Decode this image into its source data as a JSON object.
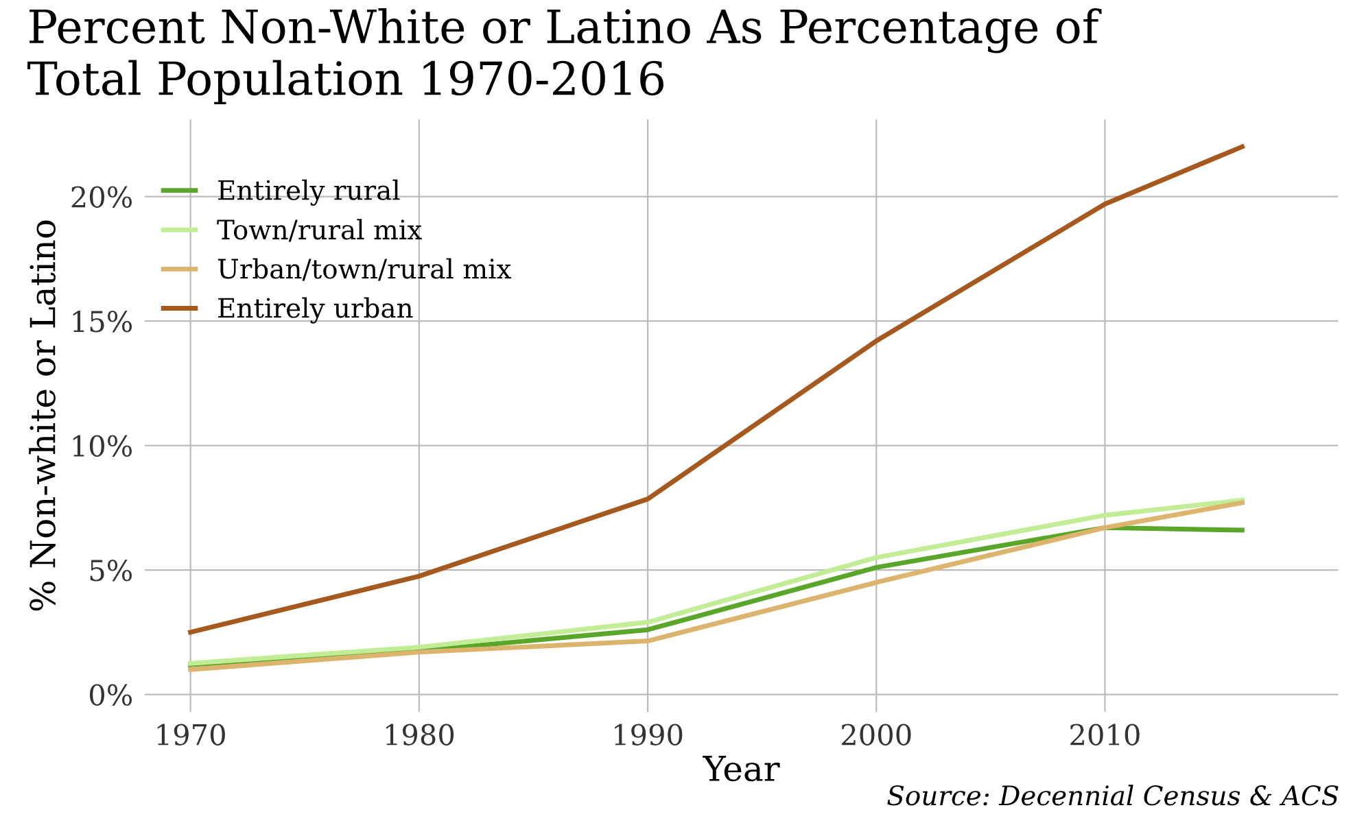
{
  "chart_data": {
    "type": "line",
    "title": "Percent Non-White or Latino As Percentage of\nTotal Population 1970-2016",
    "xlabel": "Year",
    "ylabel": "% Non-white or Latino",
    "x": [
      1970,
      1980,
      1990,
      2000,
      2010,
      2016
    ],
    "series": [
      {
        "name": "Entirely rural",
        "color": "#5aa62a",
        "values": [
          1.2,
          1.75,
          2.6,
          5.1,
          6.7,
          6.6
        ]
      },
      {
        "name": "Town/rural mix",
        "color": "#c2ec96",
        "values": [
          1.25,
          1.9,
          2.9,
          5.5,
          7.2,
          7.8
        ]
      },
      {
        "name": "Urban/town/rural mix",
        "color": "#dcb46e",
        "values": [
          1.0,
          1.7,
          2.15,
          4.5,
          6.7,
          7.7
        ]
      },
      {
        "name": "Entirely urban",
        "color": "#a6591e",
        "values": [
          2.5,
          4.75,
          7.85,
          14.2,
          19.7,
          22.0
        ]
      }
    ],
    "xlim": [
      1968,
      2020.2
    ],
    "ylim": [
      -0.7,
      23.1
    ],
    "xticks": [
      1970,
      1980,
      1990,
      2000,
      2010
    ],
    "yticks": [
      {
        "value": 0,
        "label": "0%"
      },
      {
        "value": 5,
        "label": "5%"
      },
      {
        "value": 10,
        "label": "10%"
      },
      {
        "value": 15,
        "label": "15%"
      },
      {
        "value": 20,
        "label": "20%"
      }
    ],
    "grid": true,
    "legend": "top left",
    "marker": "none",
    "line_style": "solid",
    "annotations": [
      "Source: Decennial Census & ACS"
    ]
  }
}
